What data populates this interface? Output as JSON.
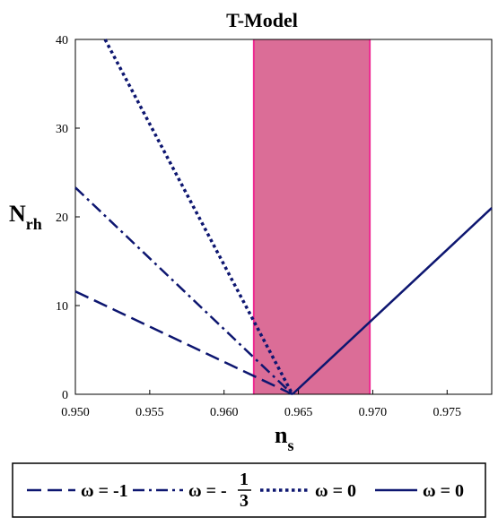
{
  "chart_data": {
    "type": "line",
    "title": "T-Model",
    "xlabel": {
      "main": "n",
      "sub": "s"
    },
    "ylabel": {
      "main": "N",
      "sub": "rh"
    },
    "xlim": [
      0.95,
      0.978
    ],
    "ylim": [
      0,
      40
    ],
    "xticks": [
      0.95,
      0.955,
      0.96,
      0.965,
      0.97,
      0.975
    ],
    "xtick_labels": [
      "0.950",
      "0.955",
      "0.960",
      "0.965",
      "0.970",
      "0.975"
    ],
    "yticks": [
      0,
      10,
      20,
      30,
      40
    ],
    "ytick_labels": [
      "0",
      "10",
      "20",
      "30",
      "40"
    ],
    "band": {
      "x_min": 0.962,
      "x_max": 0.9698,
      "fill": "#db6d97",
      "edge": "#ee2a92"
    },
    "line_color": "#0d1670",
    "series": [
      {
        "legend": "ω = -1",
        "dash": "dash",
        "points": [
          [
            0.95,
            11.6
          ],
          [
            0.9646,
            0
          ]
        ]
      },
      {
        "legend": "ω = -",
        "legend_frac": [
          "1",
          "3"
        ],
        "dash": "dashdot",
        "points": [
          [
            0.95,
            23.3
          ],
          [
            0.9646,
            0
          ]
        ]
      },
      {
        "legend": "ω = 0",
        "dash": "dot",
        "points": [
          [
            0.952,
            40
          ],
          [
            0.9646,
            0
          ]
        ]
      },
      {
        "legend": "ω = 0",
        "dash": "solid",
        "points": [
          [
            0.9646,
            0
          ],
          [
            0.978,
            21
          ]
        ]
      }
    ],
    "grid": false,
    "legend_position": "bottom"
  }
}
